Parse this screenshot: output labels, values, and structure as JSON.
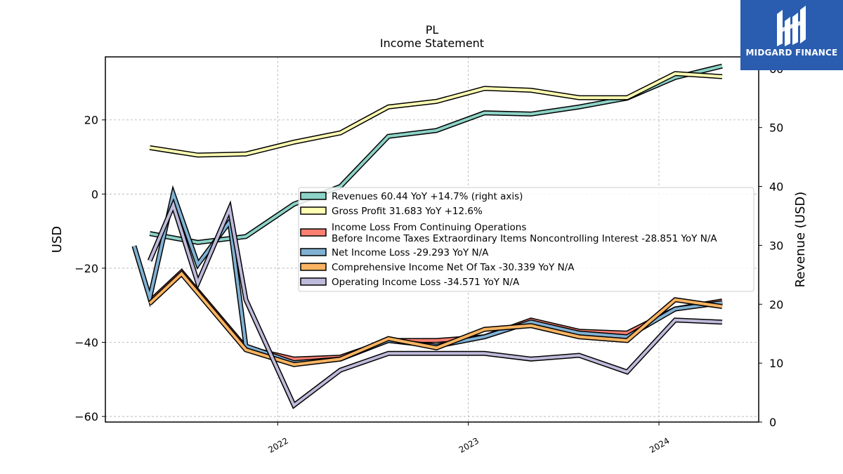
{
  "chart_data": {
    "type": "line",
    "title": "PL",
    "subtitle": "Income Statement",
    "ylabel": "USD",
    "y2label": "Revenue (USD)",
    "ylim": [
      -61.5,
      37
    ],
    "y2lim": [
      0,
      62
    ],
    "yticks": [
      -60,
      -40,
      -20,
      0,
      20
    ],
    "y2ticks": [
      0,
      10,
      20,
      30,
      40,
      50,
      60
    ],
    "xlim": [
      "2021-02-05",
      "2024-07-10"
    ],
    "xticks": [
      {
        "date": "2022-01-01",
        "label": "2022"
      },
      {
        "date": "2023-01-01",
        "label": "2023"
      },
      {
        "date": "2024-01-01",
        "label": "2024"
      }
    ],
    "grid": true,
    "legend_position": "center-right",
    "series": [
      {
        "name": "Revenues",
        "label": "Revenues  60.44 YoY +14.7% (right axis)",
        "axis": "right",
        "color": "#8dd3c7",
        "points": [
          [
            "2021-05-01",
            32.0
          ],
          [
            "2021-08-01",
            30.5
          ],
          [
            "2021-11-01",
            31.5
          ],
          [
            "2022-02-01",
            37.0
          ],
          [
            "2022-05-01",
            40.0
          ],
          [
            "2022-08-01",
            48.5
          ],
          [
            "2022-11-01",
            49.5
          ],
          [
            "2023-02-01",
            52.5
          ],
          [
            "2023-05-01",
            52.3
          ],
          [
            "2023-08-01",
            53.5
          ],
          [
            "2023-11-01",
            55.0
          ],
          [
            "2024-02-01",
            58.5
          ],
          [
            "2024-05-01",
            60.44
          ]
        ]
      },
      {
        "name": "Gross Profit",
        "label": "Gross Profit  31.683 YoY +12.6%",
        "axis": "left",
        "color": "#ffffb3",
        "points": [
          [
            "2021-05-01",
            12.5
          ],
          [
            "2021-08-01",
            10.5
          ],
          [
            "2021-11-01",
            10.8
          ],
          [
            "2022-02-01",
            14.0
          ],
          [
            "2022-05-01",
            16.5
          ],
          [
            "2022-08-01",
            23.5
          ],
          [
            "2022-11-01",
            25.0
          ],
          [
            "2023-02-01",
            28.5
          ],
          [
            "2023-05-01",
            28.0
          ],
          [
            "2023-08-01",
            26.0
          ],
          [
            "2023-11-01",
            26.0
          ],
          [
            "2024-02-01",
            32.5
          ],
          [
            "2024-05-01",
            31.683
          ]
        ]
      },
      {
        "name": "Income Loss From Continuing Operations Before Income Taxes Extraordinary Items Noncontrolling Interest",
        "label": [
          "Income Loss From Continuing Operations",
          "Before Income Taxes Extraordinary Items Noncontrolling Interest  -28.851 YoY N/A"
        ],
        "axis": "left",
        "color": "#fb8072",
        "points": [
          [
            "2021-05-01",
            -29.0
          ],
          [
            "2021-07-01",
            -21.0
          ],
          [
            "2021-11-01",
            -41.5
          ],
          [
            "2022-02-01",
            -44.5
          ],
          [
            "2022-05-01",
            -44.0
          ],
          [
            "2022-08-01",
            -39.5
          ],
          [
            "2022-11-01",
            -39.5
          ],
          [
            "2023-02-01",
            -38.5
          ],
          [
            "2023-05-01",
            -34.0
          ],
          [
            "2023-08-01",
            -37.0
          ],
          [
            "2023-11-01",
            -37.5
          ],
          [
            "2024-02-01",
            -31.0
          ],
          [
            "2024-05-01",
            -28.851
          ]
        ]
      },
      {
        "name": "Net Income Loss",
        "label": "Net Income Loss  -29.293 YoY N/A",
        "axis": "left",
        "color": "#80b1d3",
        "points": [
          [
            "2021-04-01",
            -14.0
          ],
          [
            "2021-05-01",
            -28.0
          ],
          [
            "2021-06-15",
            0.0
          ],
          [
            "2021-08-01",
            -19.0
          ],
          [
            "2021-10-01",
            -7.5
          ],
          [
            "2021-11-01",
            -41.0
          ],
          [
            "2022-02-01",
            -45.5
          ],
          [
            "2022-05-01",
            -44.5
          ],
          [
            "2022-08-01",
            -39.5
          ],
          [
            "2022-11-01",
            -41.0
          ],
          [
            "2023-02-01",
            -38.5
          ],
          [
            "2023-05-01",
            -34.5
          ],
          [
            "2023-08-01",
            -37.5
          ],
          [
            "2023-11-01",
            -38.5
          ],
          [
            "2024-02-01",
            -31.0
          ],
          [
            "2024-05-01",
            -29.293
          ]
        ]
      },
      {
        "name": "Comprehensive Income Net Of Tax",
        "label": "Comprehensive Income Net Of Tax  -30.339 YoY N/A",
        "axis": "left",
        "color": "#fdb462",
        "points": [
          [
            "2021-05-01",
            -29.5
          ],
          [
            "2021-07-01",
            -21.5
          ],
          [
            "2021-11-01",
            -42.0
          ],
          [
            "2022-02-01",
            -46.0
          ],
          [
            "2022-05-01",
            -44.5
          ],
          [
            "2022-08-01",
            -39.0
          ],
          [
            "2022-11-01",
            -41.5
          ],
          [
            "2023-02-01",
            -36.5
          ],
          [
            "2023-05-01",
            -35.5
          ],
          [
            "2023-08-01",
            -38.5
          ],
          [
            "2023-11-01",
            -39.5
          ],
          [
            "2024-02-01",
            -28.5
          ],
          [
            "2024-05-01",
            -30.339
          ]
        ]
      },
      {
        "name": "Operating Income Loss",
        "label": "Operating Income Loss  -34.571 YoY N/A",
        "axis": "left",
        "color": "#bebada",
        "points": [
          [
            "2021-05-01",
            -18.0
          ],
          [
            "2021-06-15",
            -3.0
          ],
          [
            "2021-08-01",
            -24.0
          ],
          [
            "2021-10-01",
            -4.0
          ],
          [
            "2021-11-01",
            -28.5
          ],
          [
            "2022-02-01",
            -57.0
          ],
          [
            "2022-05-01",
            -47.5
          ],
          [
            "2022-08-01",
            -43.0
          ],
          [
            "2022-11-01",
            -43.0
          ],
          [
            "2023-02-01",
            -43.0
          ],
          [
            "2023-05-01",
            -44.5
          ],
          [
            "2023-08-01",
            -43.5
          ],
          [
            "2023-11-01",
            -48.0
          ],
          [
            "2024-02-01",
            -34.0
          ],
          [
            "2024-05-01",
            -34.571
          ]
        ]
      }
    ]
  },
  "logo": {
    "text": "MIDGARD FINANCE"
  }
}
